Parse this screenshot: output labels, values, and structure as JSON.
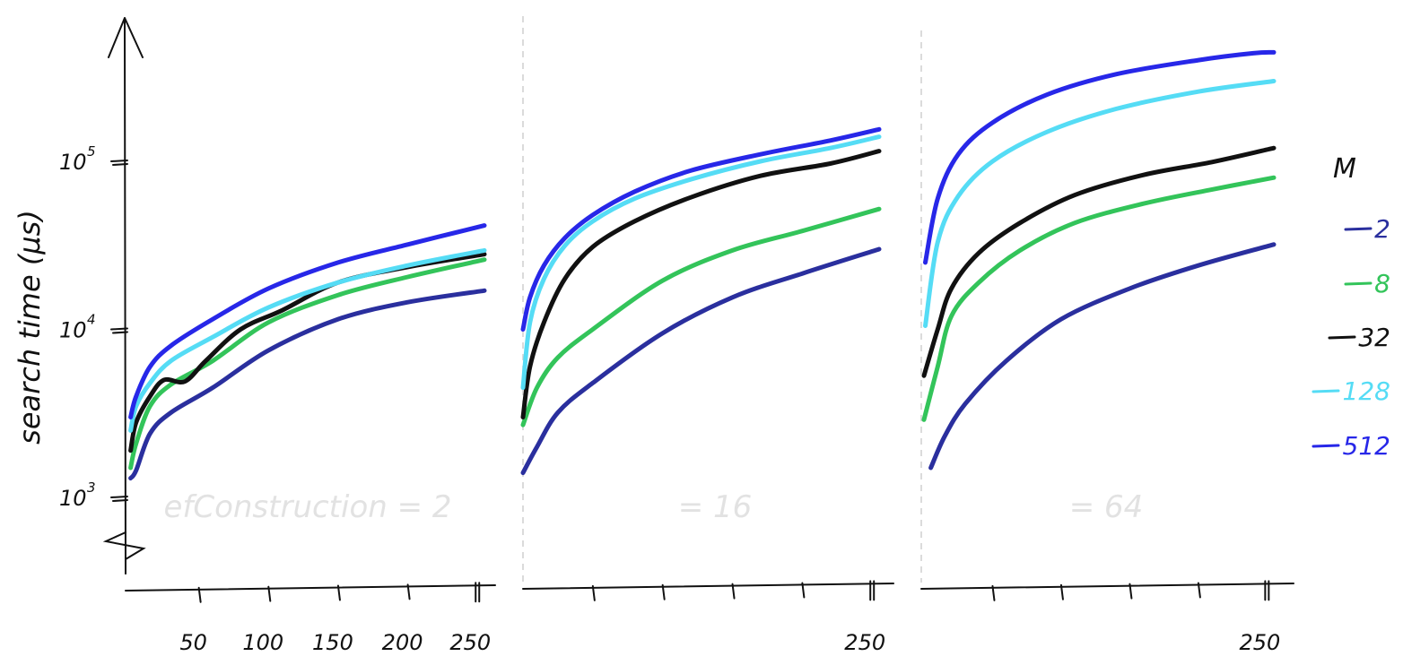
{
  "chart_data": {
    "type": "line",
    "ylabel": "search time (μs)",
    "yscale": "log",
    "ylim": [
      1000,
      600000
    ],
    "y_ticks": [
      {
        "value": 1000,
        "label": "10",
        "exp": "3"
      },
      {
        "value": 10000,
        "label": "10",
        "exp": "4"
      },
      {
        "value": 100000,
        "label": "10",
        "exp": "5"
      }
    ],
    "xlim": [
      0,
      255
    ],
    "legend": {
      "title": "M",
      "position": "right",
      "entries": [
        {
          "label": "2",
          "color": "#2a2f9e"
        },
        {
          "label": "8",
          "color": "#33c45a"
        },
        {
          "label": "32",
          "color": "#111111"
        },
        {
          "label": "128",
          "color": "#55dcf5"
        },
        {
          "label": "512",
          "color": "#2727e8"
        }
      ]
    },
    "panels": [
      {
        "label": "efConstruction = 2",
        "x_ticks": [
          50,
          100,
          150,
          200,
          250
        ],
        "x_tick_labels": [
          "50",
          "100",
          "150",
          "200",
          "250"
        ],
        "series": [
          {
            "name": "2",
            "color": "#2a2f9e",
            "x": [
              1,
              5,
              15,
              30,
              60,
              100,
              150,
              200,
              255
            ],
            "y": [
              1300,
              1450,
              2400,
              3200,
              4500,
              7500,
              11500,
              14500,
              17000
            ]
          },
          {
            "name": "8",
            "color": "#33c45a",
            "x": [
              1,
              5,
              15,
              30,
              60,
              100,
              150,
              200,
              255
            ],
            "y": [
              1500,
              2100,
              3500,
              4700,
              6500,
              11000,
              16000,
              20500,
              26000
            ]
          },
          {
            "name": "32",
            "color": "#111111",
            "x": [
              1,
              5,
              15,
              25,
              40,
              55,
              80,
              110,
              150,
              200,
              255
            ],
            "y": [
              1900,
              2800,
              4000,
              5000,
              4900,
              6500,
              10000,
              13000,
              19000,
              23500,
              28000
            ]
          },
          {
            "name": "128",
            "color": "#55dcf5",
            "x": [
              1,
              5,
              15,
              30,
              60,
              100,
              150,
              200,
              255
            ],
            "y": [
              2500,
              3500,
              4800,
              6500,
              9000,
              13500,
              19000,
              24000,
              29500
            ]
          },
          {
            "name": "512",
            "color": "#2727e8",
            "x": [
              1,
              5,
              15,
              30,
              60,
              100,
              150,
              200,
              255
            ],
            "y": [
              3000,
              4000,
              6000,
              8000,
              11500,
              17500,
              25000,
              32000,
              41500
            ]
          }
        ]
      },
      {
        "label": "= 16",
        "x_ticks": [
          50,
          100,
          150,
          200,
          250
        ],
        "x_tick_labels": [
          "",
          "",
          "",
          "",
          "250"
        ],
        "series": [
          {
            "name": "2",
            "color": "#2a2f9e",
            "x": [
              0,
              10,
              25,
              50,
              100,
              150,
              200,
              255
            ],
            "y": [
              1400,
              2000,
              3200,
              4800,
              9500,
              15500,
              21500,
              30000
            ]
          },
          {
            "name": "8",
            "color": "#33c45a",
            "x": [
              0,
              10,
              25,
              50,
              100,
              150,
              200,
              255
            ],
            "y": [
              2700,
              4500,
              6800,
              10000,
              19500,
              29500,
              38500,
              52000
            ]
          },
          {
            "name": "32",
            "color": "#111111",
            "x": [
              0,
              5,
              15,
              30,
              50,
              80,
              120,
              170,
              220,
              255
            ],
            "y": [
              3000,
              6000,
              11000,
              20000,
              31000,
              44000,
              61000,
              82000,
              97000,
              115000
            ]
          },
          {
            "name": "128",
            "color": "#55dcf5",
            "x": [
              0,
              5,
              15,
              30,
              50,
              80,
              120,
              170,
              220,
              255
            ],
            "y": [
              4500,
              11000,
              20000,
              31500,
              44000,
              60000,
              78000,
              100000,
              120000,
              140000
            ]
          },
          {
            "name": "512",
            "color": "#2727e8",
            "x": [
              0,
              5,
              15,
              30,
              50,
              80,
              120,
              170,
              220,
              255
            ],
            "y": [
              10000,
              15500,
              24000,
              35000,
              48000,
              66000,
              88000,
              110000,
              133000,
              155000
            ]
          }
        ]
      },
      {
        "label": "= 64",
        "x_ticks": [
          50,
          100,
          150,
          200,
          250
        ],
        "x_tick_labels": [
          "",
          "",
          "",
          "",
          "250"
        ],
        "series": [
          {
            "name": "2",
            "color": "#2a2f9e",
            "x": [
              5,
              15,
              30,
              60,
              100,
              150,
              200,
              255
            ],
            "y": [
              1500,
              2300,
              3600,
              6500,
              11500,
              17500,
              24000,
              32000
            ]
          },
          {
            "name": "8",
            "color": "#33c45a",
            "x": [
              0,
              10,
              20,
              40,
              70,
              110,
              160,
              210,
              255
            ],
            "y": [
              2900,
              6000,
              12000,
              19000,
              29500,
              43000,
              56000,
              68000,
              80000
            ]
          },
          {
            "name": "32",
            "color": "#111111",
            "x": [
              0,
              10,
              20,
              40,
              70,
              110,
              160,
              210,
              255
            ],
            "y": [
              5300,
              10000,
              17500,
              28500,
              43000,
              63000,
              83000,
              99000,
              120000
            ]
          },
          {
            "name": "128",
            "color": "#55dcf5",
            "x": [
              1,
              10,
              25,
              50,
              90,
              140,
              200,
              255
            ],
            "y": [
              10500,
              33000,
              62000,
              100000,
              150000,
              205000,
              260000,
              300000
            ]
          },
          {
            "name": "512",
            "color": "#2727e8",
            "x": [
              1,
              10,
              25,
              50,
              90,
              140,
              200,
              240,
              255
            ],
            "y": [
              25000,
              60000,
              110000,
              170000,
              250000,
              330000,
              400000,
              440000,
              445000
            ]
          }
        ]
      }
    ]
  }
}
